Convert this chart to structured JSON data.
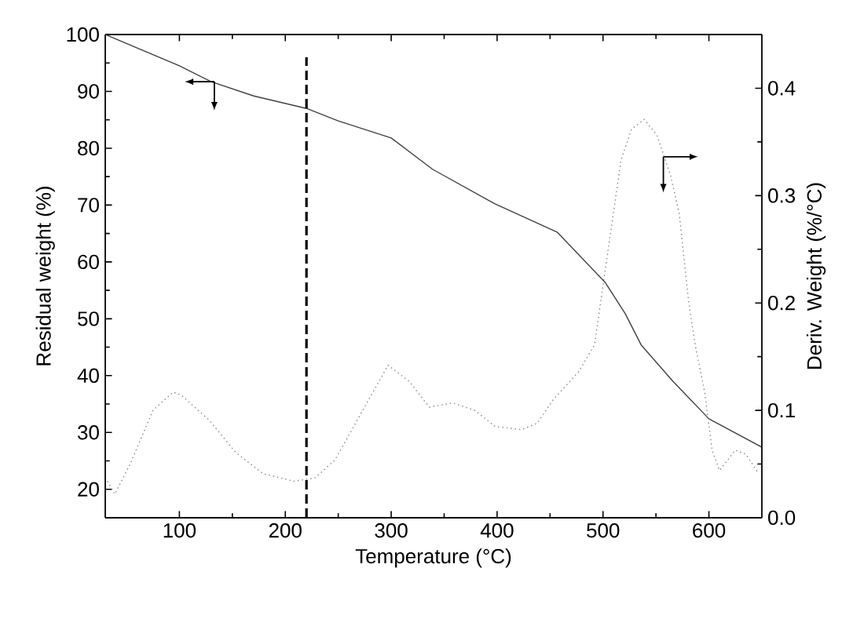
{
  "chart_data": {
    "type": "line",
    "xlabel": "Temperature (°C)",
    "ylabel": "Residual weight (%)",
    "y2label": "Deriv. Weight (%/°C)",
    "xlim": [
      30,
      650
    ],
    "xticks": [
      100,
      200,
      300,
      400,
      500,
      600
    ],
    "ylim": [
      15,
      100
    ],
    "yticks": [
      20,
      30,
      40,
      50,
      60,
      70,
      80,
      90,
      100
    ],
    "y2lim": [
      0,
      0.45
    ],
    "y2ticks": [
      {
        "value": 0,
        "label": "0.0"
      },
      0.1,
      0.2,
      0.3,
      0.4
    ],
    "grid": false,
    "marker": "none",
    "ref_lines": [
      {
        "axis": "x",
        "value": 220,
        "color": "#000000",
        "line_style": "dashed"
      }
    ],
    "series": [
      {
        "color": "#404040",
        "line_style": "solid",
        "x": [
          30,
          100,
          130,
          170,
          220,
          250,
          300,
          339,
          398,
          457,
          502,
          521,
          536,
          566,
          600,
          650
        ],
        "values": [
          100,
          94.5,
          91.7,
          89.2,
          87,
          84.8,
          81.8,
          76.3,
          70.2,
          65.2,
          56.4,
          50.9,
          45.4,
          39,
          32.4,
          27.4
        ]
      },
      {
        "color": "#808080",
        "line_style": "dotted",
        "axis": "y2",
        "x": [
          32,
          39,
          54,
          75,
          94,
          102,
          128,
          153,
          179,
          208,
          228,
          247,
          272,
          297,
          317,
          336,
          358,
          379,
          398,
          423,
          438,
          453,
          477,
          492,
          502,
          509,
          517,
          527,
          539,
          551,
          564,
          572,
          581,
          587,
          596,
          603,
          610,
          625,
          635,
          647
        ],
        "values": [
          0.034,
          0.022,
          0.051,
          0.1,
          0.117,
          0.114,
          0.091,
          0.061,
          0.041,
          0.034,
          0.037,
          0.054,
          0.098,
          0.142,
          0.127,
          0.103,
          0.107,
          0.1,
          0.085,
          0.082,
          0.088,
          0.11,
          0.136,
          0.161,
          0.23,
          0.278,
          0.333,
          0.362,
          0.371,
          0.356,
          0.318,
          0.283,
          0.2,
          0.161,
          0.117,
          0.063,
          0.044,
          0.063,
          0.059,
          0.041
        ]
      }
    ]
  }
}
